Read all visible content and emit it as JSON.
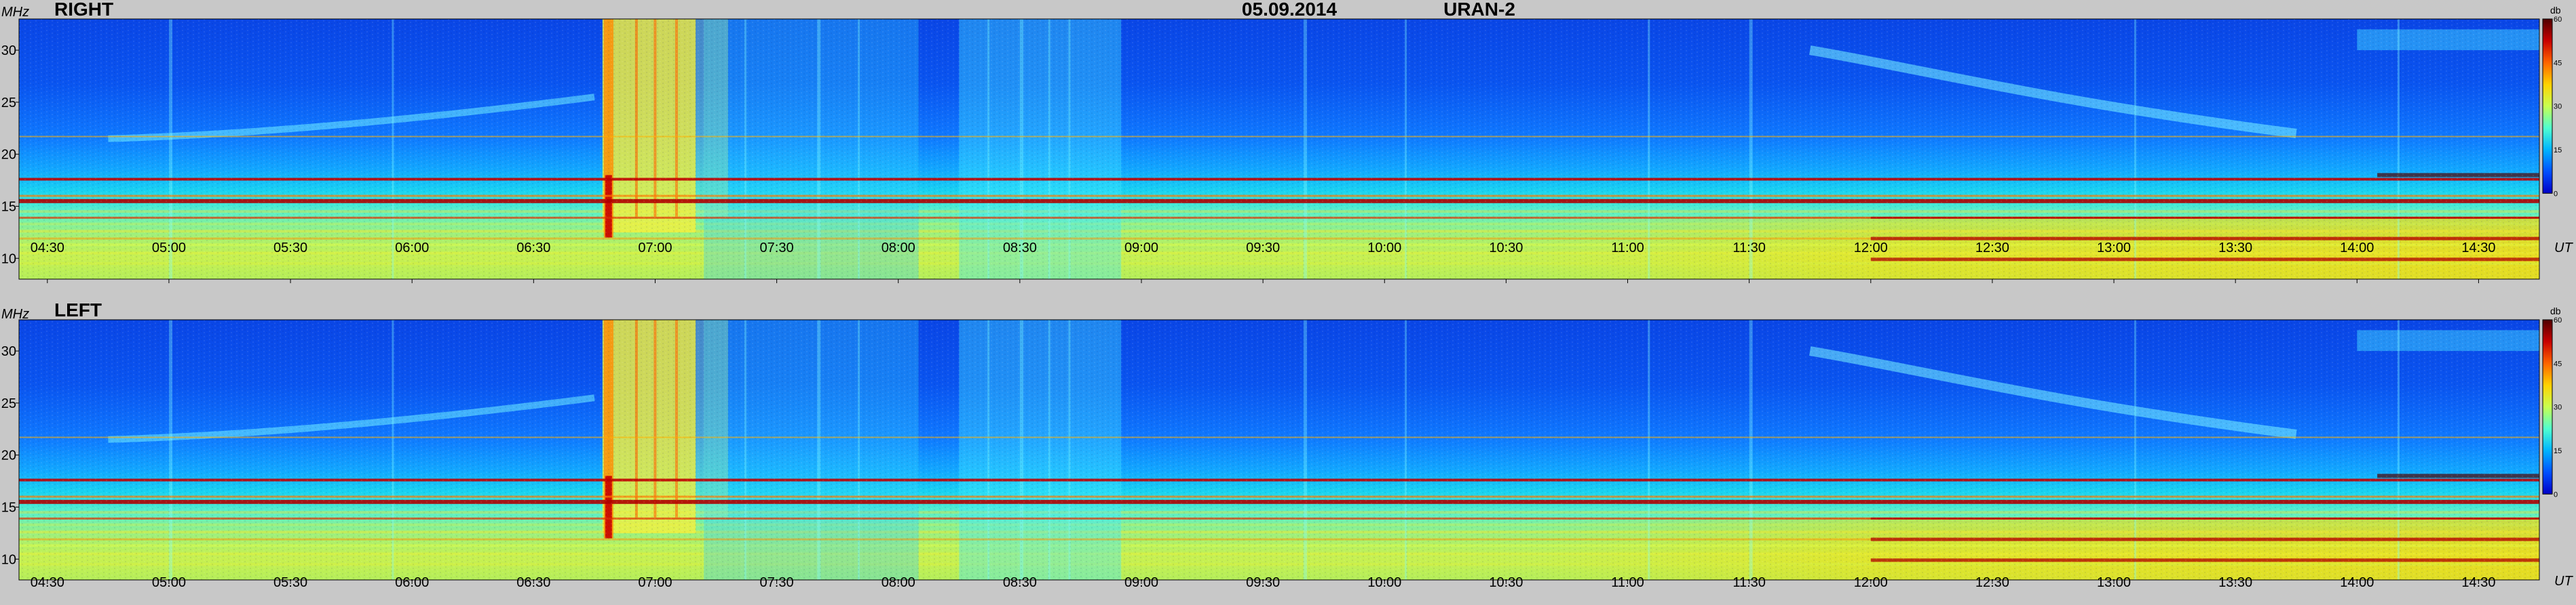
{
  "header": {
    "date": "05.09.2014",
    "instrument": "URAN-2"
  },
  "colors": {
    "background": "#c8c8c8",
    "colormap": [
      "#0000c8",
      "#0050ff",
      "#00b4ff",
      "#50ffd0",
      "#c8ff50",
      "#ffd200",
      "#ff6400",
      "#c80000",
      "#500000"
    ]
  },
  "chart_data": [
    {
      "type": "heatmap",
      "title": "RIGHT",
      "ylabel": "MHz",
      "xlabel": "UT",
      "x_range": [
        "04:23",
        "14:45"
      ],
      "ylim": [
        8,
        33
      ],
      "x_ticks": [
        "04:30",
        "05:00",
        "05:30",
        "06:00",
        "06:30",
        "07:00",
        "07:30",
        "08:00",
        "08:30",
        "09:00",
        "09:30",
        "10:00",
        "10:30",
        "11:00",
        "11:30",
        "12:00",
        "12:30",
        "13:00",
        "13:30",
        "14:00",
        "14:30"
      ],
      "y_ticks": [
        10,
        15,
        20,
        25,
        30
      ],
      "colorbar": {
        "label": "db",
        "range": [
          0,
          60
        ],
        "ticks": [
          0,
          15,
          30,
          45,
          60
        ]
      },
      "features": {
        "burst_time": [
          "06:47",
          "07:10"
        ],
        "hot_band_mhz": [
          15.5,
          17.6
        ],
        "bright_after": "12:00"
      }
    },
    {
      "type": "heatmap",
      "title": "LEFT",
      "ylabel": "MHz",
      "xlabel": "UT",
      "x_range": [
        "04:23",
        "14:45"
      ],
      "ylim": [
        8,
        33
      ],
      "x_ticks": [
        "04:30",
        "05:00",
        "05:30",
        "06:00",
        "06:30",
        "07:00",
        "07:30",
        "08:00",
        "08:30",
        "09:00",
        "09:30",
        "10:00",
        "10:30",
        "11:00",
        "11:30",
        "12:00",
        "12:30",
        "13:00",
        "13:30",
        "14:00",
        "14:30"
      ],
      "y_ticks": [
        10,
        15,
        20,
        25,
        30
      ],
      "colorbar": {
        "label": "db",
        "range": [
          0,
          60
        ],
        "ticks": [
          0,
          15,
          30,
          45,
          60
        ]
      },
      "features": {
        "burst_time": [
          "06:47",
          "07:10"
        ],
        "hot_band_mhz": [
          15.5,
          17.6
        ],
        "bright_after": "12:00"
      }
    }
  ]
}
